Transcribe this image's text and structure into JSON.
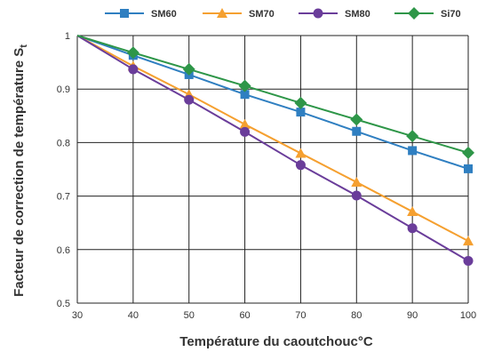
{
  "chart_data": {
    "type": "line",
    "xlabel": "Température du caoutchouc°C",
    "ylabel": "Facteur de correction de température S",
    "ylabel_subscript": "t",
    "xlim": [
      30,
      100
    ],
    "ylim": [
      0.5,
      1.0
    ],
    "x_ticks": [
      30,
      40,
      50,
      60,
      70,
      80,
      90,
      100
    ],
    "y_ticks": [
      0.5,
      0.6,
      0.7,
      0.8,
      0.9,
      1.0
    ],
    "x_tick_labels": [
      "30",
      "40",
      "50",
      "60",
      "70",
      "80",
      "90",
      "100"
    ],
    "y_tick_labels": [
      "0.5",
      "0.6",
      "0.7",
      "0.8",
      "0.9",
      "1"
    ],
    "grid": true,
    "legend_position": "top",
    "x": [
      30,
      40,
      50,
      60,
      70,
      80,
      90,
      100
    ],
    "series": [
      {
        "name": "SM60",
        "color": "#2f7fc1",
        "marker": "square",
        "values": [
          1.0,
          0.963,
          0.927,
          0.89,
          0.857,
          0.821,
          0.785,
          0.751
        ]
      },
      {
        "name": "SM70",
        "color": "#f5a030",
        "marker": "triangle",
        "values": [
          1.0,
          0.943,
          0.89,
          0.834,
          0.78,
          0.726,
          0.671,
          0.616
        ]
      },
      {
        "name": "SM80",
        "color": "#6a3d9a",
        "marker": "circle",
        "values": [
          1.0,
          0.937,
          0.88,
          0.82,
          0.758,
          0.701,
          0.64,
          0.579
        ]
      },
      {
        "name": "Si70",
        "color": "#2e9648",
        "marker": "diamond",
        "values": [
          1.0,
          0.968,
          0.937,
          0.906,
          0.874,
          0.843,
          0.812,
          0.781
        ]
      }
    ]
  }
}
